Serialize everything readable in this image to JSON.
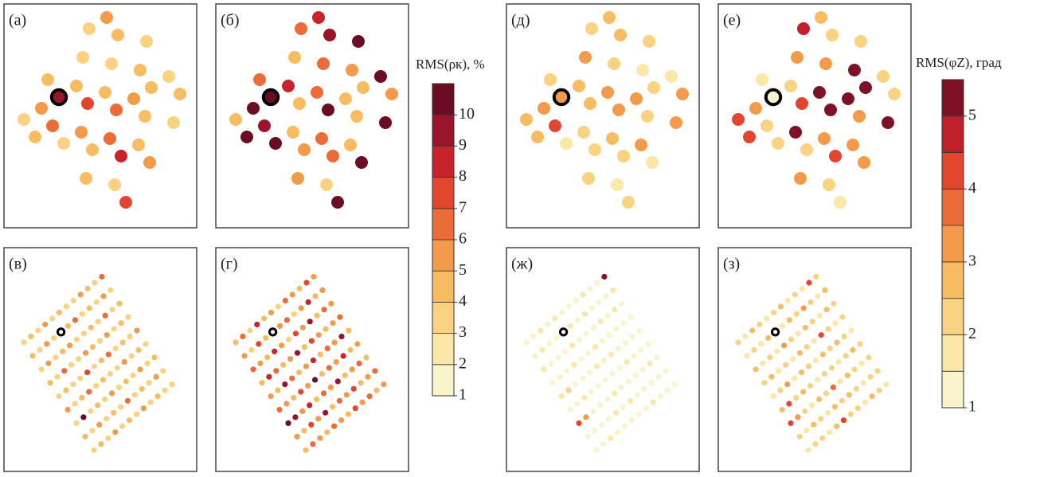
{
  "chart_data": [
    {
      "type": "map",
      "label": "(а)",
      "values": [
        [
          null,
          null,
          null,
          null,
          null,
          3,
          5,
          null
        ],
        [
          null,
          null,
          4,
          null,
          3,
          null,
          4,
          null
        ],
        [
          3,
          5,
          9,
          4,
          null,
          3,
          null,
          3
        ],
        [
          4,
          6,
          null,
          7,
          4,
          null,
          4,
          null
        ],
        [
          null,
          3,
          5,
          null,
          6,
          5,
          4,
          3
        ],
        [
          null,
          null,
          4,
          6,
          null,
          4,
          null,
          4
        ],
        [
          null,
          4,
          null,
          8,
          4,
          null,
          3,
          null
        ],
        [
          null,
          null,
          3,
          null,
          5,
          null,
          null,
          null
        ],
        [
          null,
          null,
          7,
          null,
          null,
          null,
          null,
          null
        ]
      ]
    },
    {
      "type": "map",
      "label": "(б)",
      "values": [
        [
          null,
          null,
          null,
          null,
          null,
          6,
          8,
          null
        ],
        [
          null,
          null,
          6,
          null,
          4,
          null,
          9,
          null
        ],
        [
          4,
          10,
          10,
          8,
          null,
          6,
          null,
          10
        ],
        [
          10,
          9,
          null,
          4,
          6,
          null,
          5,
          null
        ],
        [
          null,
          10,
          4,
          null,
          10,
          4,
          4,
          10
        ],
        [
          null,
          null,
          5,
          6,
          null,
          4,
          null,
          5
        ],
        [
          null,
          5,
          null,
          6,
          4,
          null,
          10,
          null
        ],
        [
          null,
          null,
          3,
          null,
          10,
          null,
          null,
          null
        ],
        [
          null,
          null,
          10,
          null,
          null,
          null,
          null,
          null
        ]
      ]
    },
    {
      "type": "map",
      "label": "(в)",
      "values": [
        [
          3,
          4,
          3,
          5,
          3,
          4,
          3,
          3,
          5,
          4,
          3,
          6
        ],
        [
          4,
          3,
          5,
          3,
          3,
          4,
          6,
          3,
          4,
          3,
          5,
          3
        ],
        [
          3,
          5,
          3,
          4,
          5,
          3,
          3,
          4,
          3,
          6,
          3,
          4
        ],
        [
          4,
          3,
          6,
          3,
          3,
          5,
          4,
          3,
          5,
          3,
          4,
          3
        ],
        [
          3,
          4,
          3,
          3,
          7,
          3,
          4,
          6,
          3,
          4,
          3,
          5
        ],
        [
          5,
          3,
          4,
          6,
          3,
          4,
          3,
          3,
          5,
          3,
          4,
          3
        ],
        [
          3,
          10,
          3,
          4,
          3,
          5,
          3,
          4,
          3,
          5,
          3,
          4
        ],
        [
          4,
          3,
          5,
          3,
          4,
          3,
          6,
          3,
          4,
          3,
          5,
          3
        ],
        [
          3,
          4,
          3,
          5,
          3,
          4,
          3,
          5,
          3,
          4,
          3,
          3
        ]
      ]
    },
    {
      "type": "map",
      "label": "(г)",
      "values": [
        [
          4,
          6,
          3,
          8,
          4,
          5,
          3,
          6,
          5,
          4,
          7,
          5
        ],
        [
          5,
          3,
          7,
          4,
          9,
          5,
          6,
          3,
          5,
          8,
          4,
          5
        ],
        [
          6,
          5,
          4,
          8,
          5,
          3,
          7,
          5,
          9,
          4,
          6,
          5
        ],
        [
          4,
          8,
          6,
          4,
          5,
          9,
          4,
          7,
          5,
          4,
          5,
          6
        ],
        [
          5,
          4,
          9,
          6,
          4,
          5,
          8,
          4,
          6,
          5,
          9,
          4
        ],
        [
          6,
          5,
          4,
          7,
          5,
          10,
          4,
          6,
          5,
          8,
          4,
          5
        ],
        [
          10,
          9,
          5,
          8,
          4,
          6,
          5,
          9,
          4,
          5,
          6,
          4
        ],
        [
          5,
          4,
          7,
          5,
          9,
          4,
          6,
          5,
          7,
          4,
          5,
          6
        ],
        [
          4,
          6,
          5,
          4,
          6,
          5,
          4,
          7,
          5,
          6,
          4,
          5
        ]
      ]
    },
    {
      "type": "map",
      "label": "(д)",
      "values": [
        [
          null,
          null,
          null,
          null,
          null,
          2.2,
          2.6,
          null
        ],
        [
          null,
          null,
          2.3,
          null,
          3.2,
          null,
          2.7,
          null
        ],
        [
          2.5,
          3.2,
          3.3,
          2.8,
          null,
          2.2,
          null,
          2.2
        ],
        [
          2.6,
          4.2,
          null,
          2.8,
          3.3,
          null,
          1.8,
          null
        ],
        [
          null,
          1.6,
          2.3,
          null,
          3.2,
          3,
          2.3,
          1.6
        ],
        [
          null,
          null,
          2.1,
          2.5,
          null,
          2.3,
          null,
          3
        ],
        [
          null,
          2.1,
          null,
          2.2,
          3,
          null,
          3.2,
          null
        ],
        [
          null,
          null,
          1.8,
          null,
          1.7,
          null,
          null,
          null
        ],
        [
          null,
          null,
          2.3,
          null,
          null,
          null,
          null,
          null
        ]
      ]
    },
    {
      "type": "map",
      "label": "(е)",
      "values": [
        [
          null,
          null,
          null,
          null,
          null,
          4.8,
          2.6,
          null
        ],
        [
          null,
          null,
          1.6,
          null,
          3,
          null,
          2.4,
          null
        ],
        [
          4.3,
          3.2,
          1.4,
          2.3,
          null,
          3.2,
          null,
          2.2
        ],
        [
          4.2,
          2.3,
          null,
          4.2,
          5.1,
          null,
          5.4,
          null
        ],
        [
          null,
          2,
          5.3,
          null,
          5.2,
          5.3,
          5.1,
          2
        ],
        [
          null,
          null,
          2.4,
          3.2,
          null,
          3.1,
          null,
          2.4
        ],
        [
          null,
          3.2,
          null,
          4.2,
          3,
          null,
          5.3,
          null
        ],
        [
          null,
          null,
          2.4,
          null,
          3.2,
          null,
          null,
          null
        ],
        [
          null,
          null,
          1.8,
          null,
          null,
          null,
          null,
          null
        ]
      ]
    },
    {
      "type": "map",
      "label": "(ж)",
      "values": [
        [
          1.4,
          1.2,
          1.6,
          1.3,
          1.5,
          1.2,
          1.4,
          1.3,
          1.6,
          1.2,
          1.4,
          5.3
        ],
        [
          1.3,
          1.5,
          1.2,
          1.4,
          1.2,
          1.6,
          1.3,
          1.5,
          1.2,
          1.4,
          1.3,
          1.5
        ],
        [
          1.6,
          1.3,
          1.4,
          1.2,
          1.5,
          1.3,
          1.2,
          1.4,
          1.6,
          1.3,
          1.5,
          1.2
        ],
        [
          1.2,
          1.4,
          1.3,
          1.6,
          1.3,
          1.2,
          1.5,
          1.3,
          1.2,
          1.4,
          1.2,
          1.3
        ],
        [
          1.5,
          2.2,
          1.2,
          1.3,
          1.4,
          1.5,
          1.2,
          1.6,
          1.3,
          1.2,
          1.4,
          1.3
        ],
        [
          1.3,
          1.2,
          1.5,
          1.2,
          1.3,
          1.2,
          1.4,
          1.3,
          1.5,
          1.3,
          1.2,
          1.4
        ],
        [
          4.3,
          3.2,
          1.3,
          1.4,
          1.2,
          1.5,
          1.3,
          1.2,
          1.4,
          1.2,
          1.5,
          1.3
        ],
        [
          1.2,
          1.4,
          1.2,
          1.3,
          1.5,
          1.2,
          1.6,
          1.4,
          1.2,
          1.3,
          1.2,
          1.4
        ],
        [
          1.4,
          1.3,
          1.5,
          1.2,
          1.3,
          1.4,
          1.2,
          1.3,
          1.5,
          1.2,
          1.4,
          1.2
        ]
      ]
    },
    {
      "type": "map",
      "label": "(з)",
      "values": [
        [
          2.2,
          1.8,
          2.6,
          2.1,
          1.7,
          2.4,
          2.8,
          1.9,
          2.3,
          1.8,
          4.2,
          2.2
        ],
        [
          1.9,
          2.4,
          1.7,
          2.8,
          2.2,
          1.8,
          2.5,
          2.1,
          3.2,
          2.4,
          1.8,
          2.5
        ],
        [
          2.6,
          1.8,
          2.3,
          1.9,
          3.1,
          2.2,
          1.8,
          2.7,
          2.1,
          1.9,
          2.6,
          2.1
        ],
        [
          2.1,
          2.7,
          1.9,
          2.4,
          1.8,
          2.6,
          2.2,
          1.9,
          4.3,
          2.2,
          1.8,
          2.4
        ],
        [
          1.8,
          2.2,
          3.2,
          1.9,
          2.5,
          2.1,
          1.8,
          2.6,
          2.2,
          2.8,
          2.1,
          1.9
        ],
        [
          2.5,
          4.4,
          2.1,
          2.7,
          2.2,
          1.9,
          2.4,
          2.2,
          1.8,
          2.4,
          2.6,
          2.1
        ],
        [
          4.2,
          3.1,
          2.4,
          1.8,
          2.6,
          2.2,
          3.5,
          1.9,
          2.5,
          2.1,
          1.8,
          2.3
        ],
        [
          2.1,
          1.9,
          2.7,
          2.3,
          1.9,
          2.5,
          2.1,
          2.8,
          2.2,
          1.9,
          2.4,
          2.2
        ],
        [
          1.8,
          2.4,
          2.1,
          1.9,
          2.6,
          4.1,
          2.3,
          2.1,
          1.8,
          2.5,
          2.1,
          1.9
        ]
      ]
    },
    {
      "type": "colorbar",
      "title": "RMS(ρк), %",
      "ylim": [
        1,
        11
      ],
      "yticks": [
        1,
        2,
        3,
        4,
        5,
        6,
        7,
        8,
        9,
        10
      ],
      "colors": [
        "#f9f4cc",
        "#fbe7a6",
        "#f9d382",
        "#f8bd63",
        "#f39a4b",
        "#ec6c39",
        "#e2462f",
        "#c8242c",
        "#99162a",
        "#6b0d22"
      ]
    },
    {
      "type": "colorbar",
      "title": "RMS(φZ), град",
      "ylim": [
        1,
        5.5
      ],
      "yticks": [
        1,
        2,
        3,
        4,
        5
      ],
      "colors": [
        "#f9f4cc",
        "#fbe7a6",
        "#f9d382",
        "#f8bd63",
        "#f39a4b",
        "#ec6c39",
        "#e2462f",
        "#c01f2c",
        "#7d1226"
      ]
    }
  ]
}
